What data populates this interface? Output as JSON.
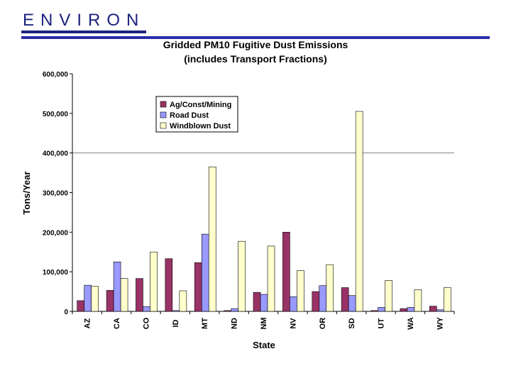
{
  "logo": {
    "text": "ENVIRON"
  },
  "chart_data": {
    "type": "bar",
    "title_line1": "Gridded PM10 Fugitive Dust Emissions",
    "title_line2": "(includes Transport Fractions)",
    "xlabel": "State",
    "ylabel": "Tons/Year",
    "ylim": [
      0,
      600000
    ],
    "yticks": [
      0,
      100000,
      200000,
      300000,
      400000,
      500000,
      600000
    ],
    "ytick_labels": [
      "0",
      "100,000",
      "200,000",
      "300,000",
      "400,000",
      "500,000",
      "600,000"
    ],
    "gridline_at": 400000,
    "legend_position": "top-left",
    "categories": [
      "AZ",
      "CA",
      "CO",
      "ID",
      "MT",
      "ND",
      "NM",
      "NV",
      "OR",
      "SD",
      "UT",
      "WA",
      "WY"
    ],
    "series": [
      {
        "name": "Ag/Const/Mining",
        "color": "#993366",
        "values": [
          27000,
          53000,
          83000,
          133000,
          123000,
          2000,
          48000,
          200000,
          50000,
          60000,
          2000,
          7000,
          13000
        ]
      },
      {
        "name": "Road Dust",
        "color": "#9999ff",
        "values": [
          66000,
          125000,
          12000,
          2000,
          195000,
          7000,
          43000,
          37000,
          65000,
          40000,
          10000,
          10000,
          4000
        ]
      },
      {
        "name": "Windblown Dust",
        "color": "#ffffcc",
        "values": [
          63000,
          83000,
          150000,
          52000,
          365000,
          177000,
          165000,
          103000,
          118000,
          505000,
          78000,
          55000,
          60000
        ]
      }
    ]
  }
}
